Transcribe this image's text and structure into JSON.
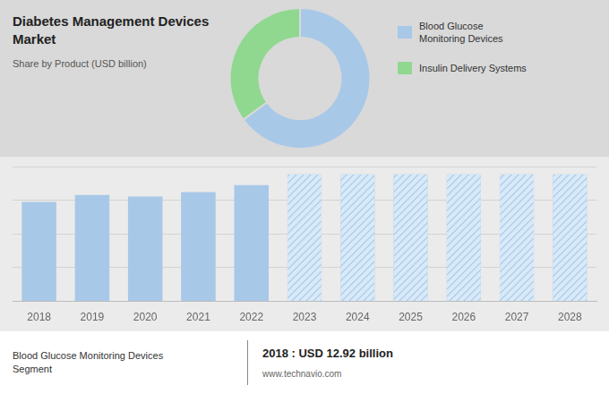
{
  "chart_data": [
    {
      "type": "doughnut",
      "title": "Diabetes Management Devices\nMarket",
      "subtitle": "Share by Product (USD billion)",
      "categories": [
        "Blood Glucose\nMonitoring Devices",
        "Insulin Delivery Systems"
      ],
      "values": [
        65,
        35
      ],
      "colors": [
        "#a8c8e8",
        "#90d890"
      ],
      "legend": "right"
    },
    {
      "type": "bar",
      "categories": [
        "2018",
        "2019",
        "2020",
        "2021",
        "2022",
        "2023",
        "2024",
        "2025",
        "2026",
        "2027",
        "2028"
      ],
      "series": [
        {
          "color": "#a8c8e8",
          "values": [
            12.92,
            13.8,
            13.6,
            14.2,
            15.1,
            null,
            null,
            null,
            null,
            null,
            null
          ]
        },
        {
          "color": "#d8eaf8",
          "values": [
            null,
            null,
            null,
            null,
            null,
            16.5,
            16.5,
            16.5,
            16.5,
            16.5,
            16.5
          ]
        }
      ],
      "ylim": [
        0,
        17.5
      ],
      "yticks": [
        0,
        4.375,
        8.75,
        13.125,
        17.5
      ],
      "grid": true,
      "tick_labels": "x",
      "annotations": [
        "Blood Glucose Monitoring Devices\nSegment",
        "2018 : USD 12.92 billion",
        "www.technavio.com"
      ]
    }
  ]
}
